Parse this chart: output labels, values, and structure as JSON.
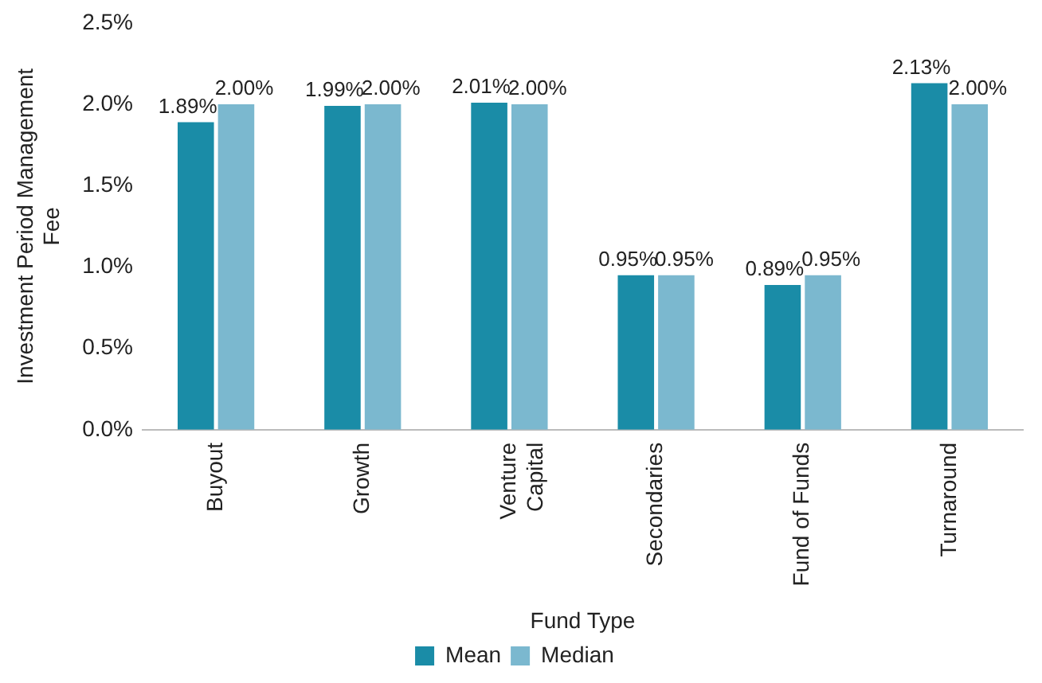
{
  "chart_data": {
    "type": "bar",
    "xlabel": "Fund Type",
    "ylabel": "Investment Period Management Fee",
    "categories": [
      "Buyout",
      "Growth",
      "Venture Capital",
      "Secondaries",
      "Fund of Funds",
      "Turnaround"
    ],
    "series": [
      {
        "name": "Mean",
        "color": "#1a8ca7",
        "values": [
          1.89,
          1.99,
          2.01,
          0.95,
          0.89,
          2.13
        ],
        "value_labels": [
          "1.89%",
          "1.99%",
          "2.01%",
          "0.95%",
          "0.89%",
          "2.13%"
        ]
      },
      {
        "name": "Median",
        "color": "#7bb8cf",
        "values": [
          2.0,
          2.0,
          2.0,
          0.95,
          0.95,
          2.0
        ],
        "value_labels": [
          "2.00%",
          "2.00%",
          "2.00%",
          "0.95%",
          "0.95%",
          "2.00%"
        ]
      }
    ],
    "ylim": [
      0,
      2.5
    ],
    "yticks": [
      {
        "value": 0,
        "label": "0.0%"
      },
      {
        "value": 0.5,
        "label": "0.5%"
      },
      {
        "value": 1,
        "label": "1.0%"
      },
      {
        "value": 1.5,
        "label": "1.5%"
      },
      {
        "value": 2,
        "label": "2.0%"
      },
      {
        "value": 2.5,
        "label": "2.5%"
      }
    ],
    "grid": false,
    "legend": "bottom"
  }
}
